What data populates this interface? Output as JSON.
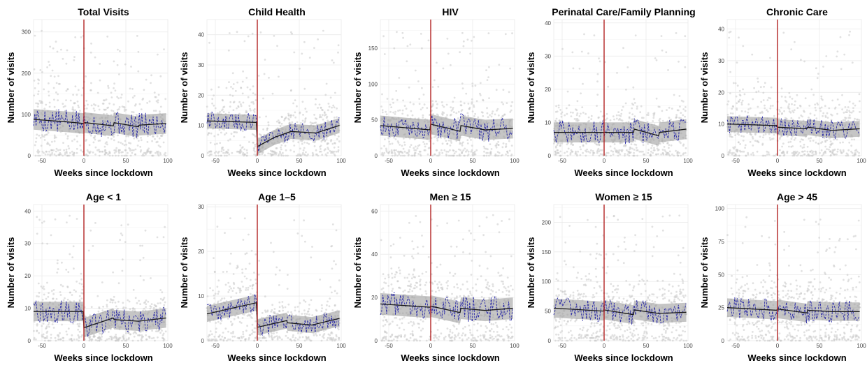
{
  "chart_data": [
    {
      "type": "scatter",
      "title": "Total Visits",
      "xlabel": "Weeks since lockdown",
      "ylabel": "Number of visits",
      "xlim": [
        -60,
        100
      ],
      "ylim": [
        0,
        330
      ],
      "xticks": [
        -50,
        0,
        50,
        100
      ],
      "yticks": [
        0,
        100,
        200,
        300
      ],
      "trend": {
        "x": [
          -60,
          -20,
          0,
          1,
          20,
          35,
          36,
          65,
          66,
          98
        ],
        "y": [
          88,
          82,
          78,
          80,
          76,
          72,
          80,
          70,
          74,
          78
        ]
      },
      "ribbon_halfwidth": 25,
      "cutoff_x": 0
    },
    {
      "type": "scatter",
      "title": "Child Health",
      "xlabel": "Weeks since lockdown",
      "ylabel": "Number of visits",
      "xlim": [
        -60,
        100
      ],
      "ylim": [
        0,
        45
      ],
      "xticks": [
        -50,
        0,
        50,
        100
      ],
      "yticks": [
        0,
        10,
        20,
        30,
        40
      ],
      "trend": {
        "x": [
          -60,
          -1,
          0,
          20,
          40,
          70,
          98
        ],
        "y": [
          11.5,
          11,
          3,
          6,
          8,
          7.5,
          10
        ]
      },
      "ribbon_halfwidth": 2.5,
      "cutoff_x": 0
    },
    {
      "type": "scatter",
      "title": "HIV",
      "xlabel": "Weeks since lockdown",
      "ylabel": "Number of visits",
      "xlim": [
        -60,
        100
      ],
      "ylim": [
        0,
        190
      ],
      "xticks": [
        -50,
        0,
        50,
        100
      ],
      "yticks": [
        0,
        50,
        100,
        150
      ],
      "trend": {
        "x": [
          -60,
          -1,
          0,
          35,
          36,
          65,
          98
        ],
        "y": [
          42,
          36,
          44,
          34,
          42,
          36,
          38
        ]
      },
      "ribbon_halfwidth": 14,
      "cutoff_x": 0
    },
    {
      "type": "scatter",
      "title": "Perinatal Care/Family Planning",
      "xlabel": "Weeks since lockdown",
      "ylabel": "Number of visits",
      "xlim": [
        -60,
        100
      ],
      "ylim": [
        0,
        41
      ],
      "xticks": [
        -50,
        0,
        50,
        100
      ],
      "yticks": [
        0,
        10,
        20,
        30,
        40
      ],
      "trend": {
        "x": [
          -60,
          -1,
          0,
          35,
          36,
          65,
          66,
          98
        ],
        "y": [
          7,
          7,
          7,
          7,
          8,
          6,
          7,
          8
        ]
      },
      "ribbon_halfwidth": 3,
      "cutoff_x": 0
    },
    {
      "type": "scatter",
      "title": "Chronic Care",
      "xlabel": "Weeks since lockdown",
      "ylabel": "Number of visits",
      "xlim": [
        -60,
        100
      ],
      "ylim": [
        0,
        43
      ],
      "xticks": [
        -50,
        0,
        50,
        100
      ],
      "yticks": [
        0,
        10,
        20,
        30,
        40
      ],
      "trend": {
        "x": [
          -60,
          -1,
          0,
          35,
          36,
          65,
          98
        ],
        "y": [
          10,
          9.5,
          9,
          8.5,
          9,
          8,
          8.5
        ]
      },
      "ribbon_halfwidth": 2.5,
      "cutoff_x": 0
    },
    {
      "type": "scatter",
      "title": "Age < 1",
      "xlabel": "Weeks since lockdown",
      "ylabel": "Number of visits",
      "xlim": [
        -60,
        100
      ],
      "ylim": [
        0,
        42
      ],
      "xticks": [
        -50,
        0,
        50,
        100
      ],
      "yticks": [
        0,
        10,
        20,
        30,
        40
      ],
      "trend": {
        "x": [
          -60,
          -1,
          0,
          35,
          36,
          65,
          98
        ],
        "y": [
          9,
          9,
          4,
          7,
          6.5,
          6,
          7
        ]
      },
      "ribbon_halfwidth": 3,
      "cutoff_x": 0
    },
    {
      "type": "scatter",
      "title": "Age 1–5",
      "xlabel": "Weeks since lockdown",
      "ylabel": "Number of visits",
      "xlim": [
        -60,
        100
      ],
      "ylim": [
        0,
        30.5
      ],
      "xticks": [
        -50,
        0,
        50,
        100
      ],
      "yticks": [
        0,
        10,
        20,
        30
      ],
      "trend": {
        "x": [
          -60,
          -1,
          0,
          35,
          36,
          65,
          98
        ],
        "y": [
          6,
          8.5,
          3,
          4.5,
          4,
          3.5,
          5
        ]
      },
      "ribbon_halfwidth": 1.8,
      "cutoff_x": 0
    },
    {
      "type": "scatter",
      "title": "Men ≥ 15",
      "xlabel": "Weeks since lockdown",
      "ylabel": "Number of visits",
      "xlim": [
        -60,
        100
      ],
      "ylim": [
        0,
        63
      ],
      "xticks": [
        -50,
        0,
        50,
        100
      ],
      "yticks": [
        0,
        20,
        40,
        60
      ],
      "trend": {
        "x": [
          -60,
          -1,
          0,
          35,
          36,
          65,
          98
        ],
        "y": [
          17,
          15.5,
          16,
          13,
          15,
          14,
          15
        ]
      },
      "ribbon_halfwidth": 5,
      "cutoff_x": 0
    },
    {
      "type": "scatter",
      "title": "Women ≥ 15",
      "xlabel": "Weeks since lockdown",
      "ylabel": "Number of visits",
      "xlim": [
        -60,
        100
      ],
      "ylim": [
        0,
        230
      ],
      "xticks": [
        -50,
        0,
        50,
        100
      ],
      "yticks": [
        0,
        50,
        100,
        150,
        200
      ],
      "trend": {
        "x": [
          -60,
          -1,
          0,
          35,
          36,
          65,
          98
        ],
        "y": [
          55,
          50,
          52,
          44,
          52,
          46,
          48
        ]
      },
      "ribbon_halfwidth": 16,
      "cutoff_x": 0
    },
    {
      "type": "scatter",
      "title": "Age > 45",
      "xlabel": "Weeks since lockdown",
      "ylabel": "Number of visits",
      "xlim": [
        -60,
        100
      ],
      "ylim": [
        0,
        103
      ],
      "xticks": [
        -50,
        0,
        50,
        100
      ],
      "yticks": [
        0,
        25,
        50,
        75,
        100
      ],
      "trend": {
        "x": [
          -60,
          -1,
          0,
          35,
          36,
          65,
          98
        ],
        "y": [
          25,
          23,
          24,
          21,
          23,
          22,
          22
        ]
      },
      "ribbon_halfwidth": 7,
      "cutoff_x": 0
    }
  ],
  "colors": {
    "points": "#c8c8c8",
    "observed_line": "#2a2aa6",
    "trend_line": "#1a1a1a",
    "ribbon": "#9e9e9e",
    "cutoff": "#b22222",
    "grid": "#ebebeb"
  }
}
